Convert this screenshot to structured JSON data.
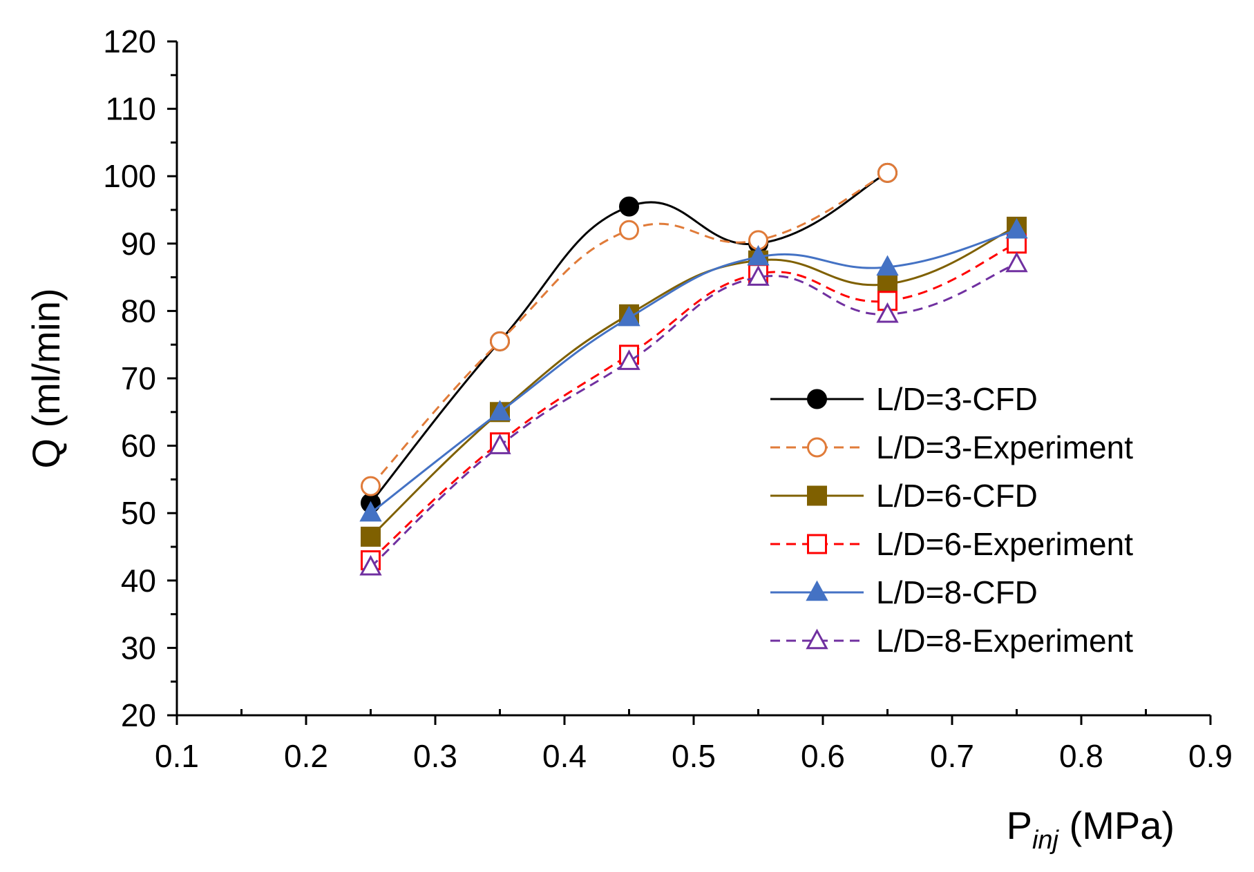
{
  "chart_data": {
    "type": "line",
    "title": "",
    "xlabel": {
      "main": "P",
      "sub": "inj",
      "unit": " (MPa)"
    },
    "ylabel": "Q (ml/min)",
    "xlim": [
      0.1,
      0.9
    ],
    "ylim": [
      20,
      120
    ],
    "x_ticks": [
      0.1,
      0.2,
      0.3,
      0.4,
      0.5,
      0.6,
      0.7,
      0.8,
      0.9
    ],
    "x_tick_labels": [
      "0.1",
      "0.2",
      "0.3",
      "0.4",
      "0.5",
      "0.6",
      "0.7",
      "0.8",
      "0.9"
    ],
    "y_ticks": [
      20,
      30,
      40,
      50,
      60,
      70,
      80,
      90,
      100,
      110,
      120
    ],
    "y_tick_labels": [
      "20",
      "30",
      "40",
      "50",
      "60",
      "70",
      "80",
      "90",
      "100",
      "110",
      "120"
    ],
    "y_minor_step": 5,
    "x_minor_step": 0.05,
    "grid": false,
    "legend_position": "right",
    "series": [
      {
        "name": "L/D=3-CFD",
        "x": [
          0.25,
          0.35,
          0.45,
          0.55,
          0.65
        ],
        "y": [
          51.5,
          75.5,
          95.5,
          90.0,
          100.5
        ],
        "color": "#000000",
        "dash": "solid",
        "marker": "circle",
        "filled": true
      },
      {
        "name": "L/D=3-Experiment",
        "x": [
          0.25,
          0.35,
          0.45,
          0.55,
          0.65
        ],
        "y": [
          54.0,
          75.5,
          92.0,
          90.5,
          100.5
        ],
        "color": "#E07B39",
        "dash": "dashed",
        "marker": "circle",
        "filled": false
      },
      {
        "name": "L/D=6-CFD",
        "x": [
          0.25,
          0.35,
          0.45,
          0.55,
          0.65,
          0.75
        ],
        "y": [
          46.5,
          65.0,
          79.5,
          87.5,
          84.0,
          92.5
        ],
        "color": "#7F6000",
        "dash": "solid",
        "marker": "square",
        "filled": true
      },
      {
        "name": "L/D=6-Experiment",
        "x": [
          0.25,
          0.35,
          0.45,
          0.55,
          0.65,
          0.75
        ],
        "y": [
          43.0,
          60.5,
          73.5,
          85.5,
          81.5,
          90.0
        ],
        "color": "#FF0000",
        "dash": "dashed",
        "marker": "square",
        "filled": false
      },
      {
        "name": "L/D=8-CFD",
        "x": [
          0.25,
          0.35,
          0.45,
          0.55,
          0.65,
          0.75
        ],
        "y": [
          50.0,
          65.0,
          79.0,
          88.0,
          86.5,
          92.0
        ],
        "color": "#4472C4",
        "dash": "solid",
        "marker": "triangle",
        "filled": true
      },
      {
        "name": "L/D=8-Experiment",
        "x": [
          0.25,
          0.35,
          0.45,
          0.55,
          0.65,
          0.75
        ],
        "y": [
          42.0,
          60.0,
          72.5,
          85.0,
          79.5,
          87.0
        ],
        "color": "#7030A0",
        "dash": "dashed",
        "marker": "triangle",
        "filled": false
      }
    ]
  }
}
